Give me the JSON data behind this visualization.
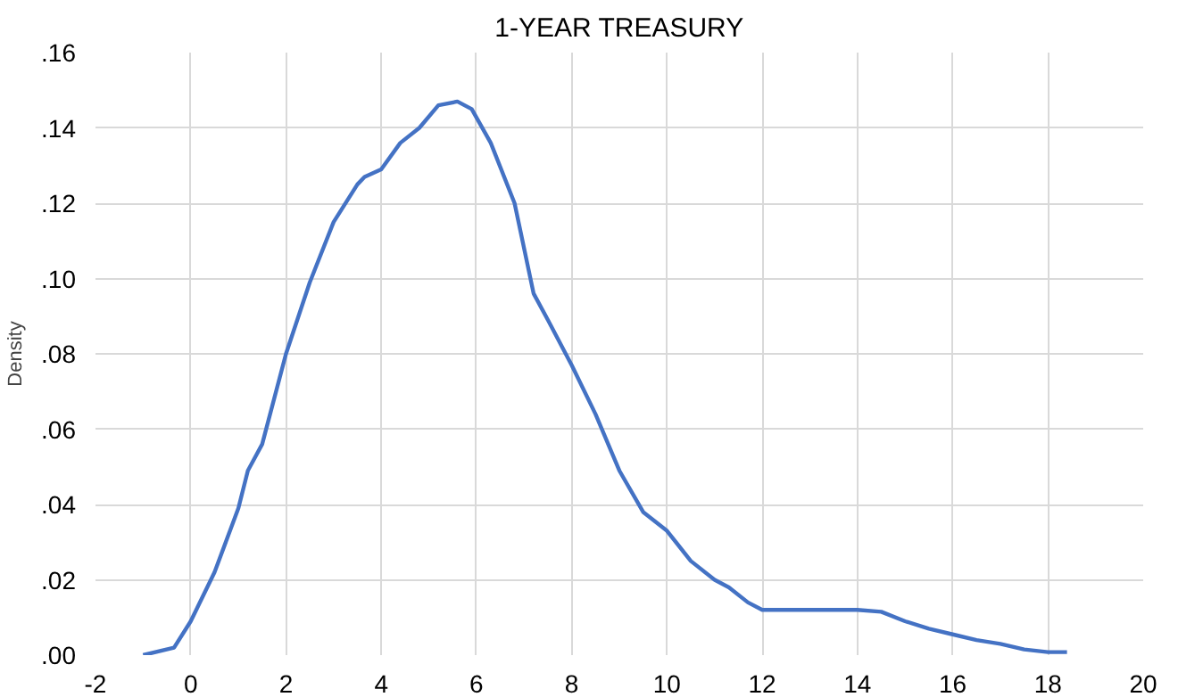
{
  "chart_data": {
    "type": "line",
    "title": "1-YEAR TREASURY",
    "ylabel": "Density",
    "series": [
      {
        "color": "#4472c4",
        "x": [
          -1,
          -0.35,
          0,
          0.5,
          1,
          1.2,
          1.5,
          2,
          2.5,
          3,
          3.5,
          3.65,
          4,
          4.4,
          4.8,
          5.2,
          5.6,
          5.9,
          6.3,
          6.8,
          7.2,
          7.5,
          8,
          8.5,
          9,
          9.5,
          10,
          10.5,
          11,
          11.3,
          11.7,
          12,
          14,
          14.5,
          15,
          15.5,
          16,
          16.5,
          17,
          17.5,
          18,
          18.4
        ],
        "values": [
          0,
          0.002,
          0.009,
          0.022,
          0.039,
          0.049,
          0.056,
          0.08,
          0.099,
          0.115,
          0.125,
          0.127,
          0.129,
          0.136,
          0.14,
          0.146,
          0.147,
          0.145,
          0.136,
          0.12,
          0.096,
          0.089,
          0.077,
          0.064,
          0.049,
          0.038,
          0.033,
          0.025,
          0.02,
          0.018,
          0.014,
          0.012,
          0.012,
          0.0115,
          0.009,
          0.007,
          0.0055,
          0.004,
          0.003,
          0.0015,
          0.0008,
          0.0008
        ]
      }
    ],
    "xlim": [
      -2,
      20
    ],
    "xticks": [
      -2,
      0,
      2,
      4,
      6,
      8,
      10,
      12,
      14,
      16,
      18,
      20
    ],
    "ylim": [
      0,
      0.16
    ],
    "yticks": [
      {
        "value": 0,
        "label": ".00"
      },
      {
        "value": 0.02,
        "label": ".02"
      },
      {
        "value": 0.04,
        "label": ".04"
      },
      {
        "value": 0.06,
        "label": ".06"
      },
      {
        "value": 0.08,
        "label": ".08"
      },
      {
        "value": 0.1,
        "label": ".10"
      },
      {
        "value": 0.12,
        "label": ".12"
      },
      {
        "value": 0.14,
        "label": ".14"
      },
      {
        "value": 0.16,
        "label": ".16"
      }
    ],
    "grid": true,
    "marker": "none",
    "line_style": "solid"
  }
}
